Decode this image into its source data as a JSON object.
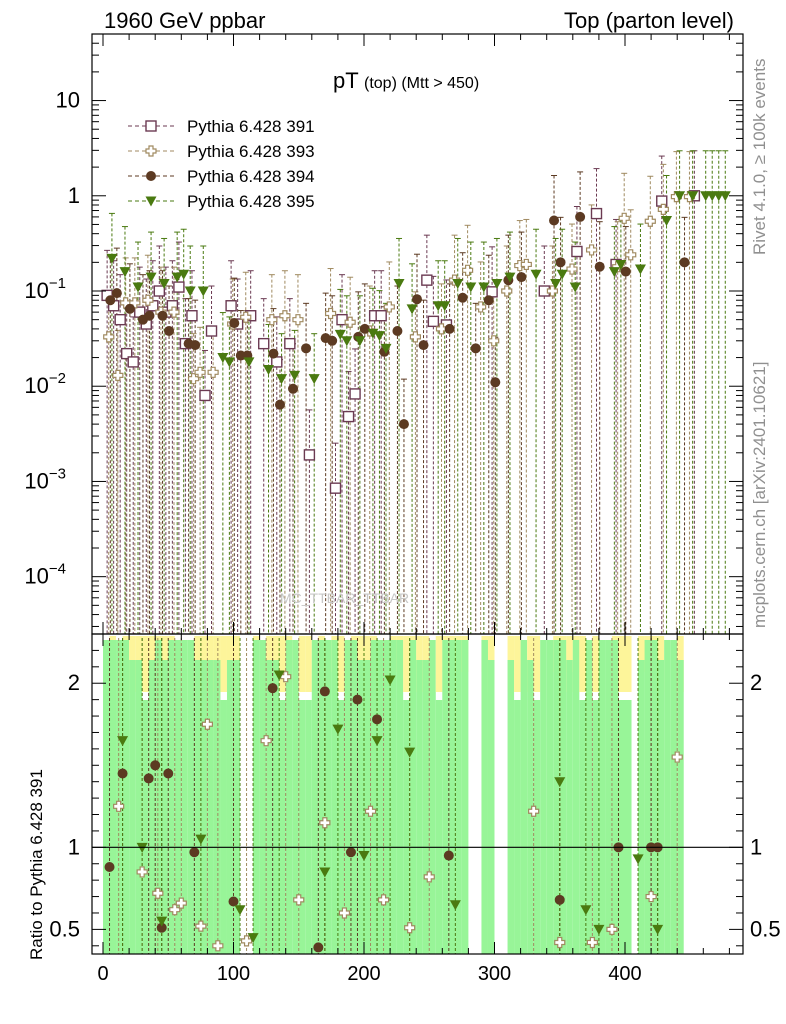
{
  "header": {
    "left": "1960 GeV ppbar",
    "right": "Top (parton level)"
  },
  "side_labels": {
    "rivet": "Rivet 4.1.0, ≥ 100k events",
    "mcplots": "mcplots.cern.ch [arXiv:2401.10621]"
  },
  "watermark": "MC_TTBAR_TTBAR",
  "chart_data": {
    "type": "scatter",
    "title": "pT",
    "title_sub": "(top)  (Mtt > 450)",
    "x_ticks": [
      "0",
      "100",
      "200",
      "300",
      "400"
    ],
    "xlim": [
      0,
      480
    ],
    "main": {
      "yscale": "log",
      "ylim": [
        2.5e-05,
        50
      ],
      "y_ticks": [
        {
          "value": 10,
          "base": "10",
          "exp": ""
        },
        {
          "value": 1,
          "base": "1",
          "exp": ""
        },
        {
          "value": 0.1,
          "base": "10",
          "exp": "−1"
        },
        {
          "value": 0.01,
          "base": "10",
          "exp": "−2"
        },
        {
          "value": 0.001,
          "base": "10",
          "exp": "−3"
        },
        {
          "value": 0.0001,
          "base": "10",
          "exp": "−4"
        }
      ]
    },
    "ratio": {
      "ylabel": "Ratio to Pythia 6.428 391",
      "ylim": [
        0.35,
        2.3
      ],
      "y_ticks": [
        "0.5",
        "1",
        "2"
      ],
      "reference_line": 1
    },
    "legend": [
      "Pythia 6.428 391",
      "Pythia 6.428 393",
      "Pythia 6.428 394",
      "Pythia 6.428 395"
    ],
    "series": [
      {
        "name": "Pythia 6.428 391",
        "marker": "open-square",
        "color": "#6b3a52",
        "points": [
          [
            5,
            0.09
          ],
          [
            10,
            0.07
          ],
          [
            15,
            0.05
          ],
          [
            20,
            0.022
          ],
          [
            25,
            0.018
          ],
          [
            30,
            0.06
          ],
          [
            35,
            0.045
          ],
          [
            40,
            0.07
          ],
          [
            45,
            0.1
          ],
          [
            50,
            0.06
          ],
          [
            55,
            0.07
          ],
          [
            60,
            0.11
          ],
          [
            65,
            0.028
          ],
          [
            70,
            0.055
          ],
          [
            80,
            0.008
          ],
          [
            85,
            0.038
          ],
          [
            100,
            0.07
          ],
          [
            105,
            0.045
          ],
          [
            115,
            0.055
          ],
          [
            125,
            0.028
          ],
          [
            135,
            0.018
          ],
          [
            145,
            0.028
          ],
          [
            160,
            0.0019
          ],
          [
            180,
            0.00085
          ],
          [
            185,
            0.05
          ],
          [
            190,
            0.0048
          ],
          [
            195,
            0.0083
          ],
          [
            210,
            0.055
          ],
          [
            215,
            0.055
          ],
          [
            250,
            0.13
          ],
          [
            255,
            0.048
          ],
          [
            265,
            0.044
          ],
          [
            300,
            0.098
          ],
          [
            340,
            0.1
          ],
          [
            365,
            0.26
          ],
          [
            380,
            0.65
          ],
          [
            395,
            0.19
          ],
          [
            430,
            0.88
          ],
          [
            455,
            1.0
          ]
        ]
      },
      {
        "name": "Pythia 6.428 393",
        "marker": "open-cross",
        "color": "#a08a60",
        "points": [
          [
            5,
            0.033
          ],
          [
            12,
            0.013
          ],
          [
            18,
            0.075
          ],
          [
            25,
            0.075
          ],
          [
            35,
            0.08
          ],
          [
            45,
            0.06
          ],
          [
            55,
            0.06
          ],
          [
            70,
            0.012
          ],
          [
            75,
            0.014
          ],
          [
            85,
            0.014
          ],
          [
            100,
            0.045
          ],
          [
            110,
            0.053
          ],
          [
            130,
            0.05
          ],
          [
            140,
            0.055
          ],
          [
            150,
            0.05
          ],
          [
            175,
            0.058
          ],
          [
            190,
            0.047
          ],
          [
            205,
            0.038
          ],
          [
            220,
            0.068
          ],
          [
            240,
            0.033
          ],
          [
            260,
            0.04
          ],
          [
            270,
            0.13
          ],
          [
            280,
            0.165
          ],
          [
            290,
            0.068
          ],
          [
            300,
            0.03
          ],
          [
            310,
            0.1
          ],
          [
            320,
            0.185
          ],
          [
            325,
            0.19
          ],
          [
            345,
            0.1
          ],
          [
            360,
            0.17
          ],
          [
            375,
            0.27
          ],
          [
            395,
            0.18
          ],
          [
            400,
            0.58
          ],
          [
            405,
            0.24
          ],
          [
            420,
            0.54
          ],
          [
            430,
            0.72
          ],
          [
            440,
            0.98
          ],
          [
            450,
            0.98
          ]
        ]
      },
      {
        "name": "Pythia 6.428 394",
        "marker": "filled-circle",
        "color": "#5c3a22",
        "points": [
          [
            5,
            0.08
          ],
          [
            10,
            0.095
          ],
          [
            20,
            0.065
          ],
          [
            30,
            0.05
          ],
          [
            35,
            0.055
          ],
          [
            45,
            0.055
          ],
          [
            50,
            0.038
          ],
          [
            65,
            0.028
          ],
          [
            70,
            0.027
          ],
          [
            100,
            0.046
          ],
          [
            105,
            0.021
          ],
          [
            110,
            0.021
          ],
          [
            130,
            0.022
          ],
          [
            135,
            0.0064
          ],
          [
            145,
            0.0094
          ],
          [
            155,
            0.025
          ],
          [
            170,
            0.032
          ],
          [
            175,
            0.03
          ],
          [
            195,
            0.033
          ],
          [
            200,
            0.04
          ],
          [
            215,
            0.023
          ],
          [
            225,
            0.038
          ],
          [
            230,
            0.004
          ],
          [
            240,
            0.082
          ],
          [
            245,
            0.027
          ],
          [
            265,
            0.04
          ],
          [
            275,
            0.085
          ],
          [
            285,
            0.025
          ],
          [
            295,
            0.08
          ],
          [
            300,
            0.011
          ],
          [
            310,
            0.13
          ],
          [
            320,
            0.14
          ],
          [
            345,
            0.55
          ],
          [
            350,
            0.2
          ],
          [
            365,
            0.6
          ],
          [
            380,
            0.18
          ],
          [
            400,
            0.16
          ],
          [
            445,
            0.2
          ]
        ]
      },
      {
        "name": "Pythia 6.428 395",
        "marker": "filled-triangle-down",
        "color": "#4a7a10",
        "points": [
          [
            5,
            0.22
          ],
          [
            15,
            0.16
          ],
          [
            25,
            0.11
          ],
          [
            35,
            0.14
          ],
          [
            45,
            0.12
          ],
          [
            55,
            0.14
          ],
          [
            60,
            0.15
          ],
          [
            65,
            0.1
          ],
          [
            75,
            0.1
          ],
          [
            90,
            0.02
          ],
          [
            95,
            0.018
          ],
          [
            110,
            0.018
          ],
          [
            125,
            0.015
          ],
          [
            135,
            0.012
          ],
          [
            145,
            0.013
          ],
          [
            160,
            0.012
          ],
          [
            180,
            0.035
          ],
          [
            185,
            0.03
          ],
          [
            195,
            0.03
          ],
          [
            205,
            0.036
          ],
          [
            210,
            0.034
          ],
          [
            215,
            0.025
          ],
          [
            225,
            0.12
          ],
          [
            235,
            0.065
          ],
          [
            255,
            0.07
          ],
          [
            260,
            0.07
          ],
          [
            270,
            0.12
          ],
          [
            280,
            0.11
          ],
          [
            290,
            0.11
          ],
          [
            300,
            0.12
          ],
          [
            310,
            0.14
          ],
          [
            330,
            0.15
          ],
          [
            345,
            0.12
          ],
          [
            350,
            0.15
          ],
          [
            360,
            0.11
          ],
          [
            390,
            0.16
          ],
          [
            395,
            0.19
          ],
          [
            410,
            0.17
          ],
          [
            430,
            0.55
          ],
          [
            440,
            1.0
          ],
          [
            450,
            1.0
          ],
          [
            460,
            1.0
          ],
          [
            465,
            1.0
          ],
          [
            470,
            1.0
          ],
          [
            475,
            1.0
          ]
        ]
      }
    ],
    "ratio_points": [
      {
        "series": "Pythia 6.428 393",
        "points": [
          [
            12,
            1.25
          ],
          [
            30,
            0.85
          ],
          [
            42,
            0.72
          ],
          [
            55,
            0.62
          ],
          [
            60,
            0.66
          ],
          [
            75,
            0.52
          ],
          [
            80,
            1.75
          ],
          [
            88,
            0.4
          ],
          [
            110,
            0.43
          ],
          [
            125,
            1.65
          ],
          [
            140,
            2.04
          ],
          [
            150,
            0.68
          ],
          [
            170,
            1.15
          ],
          [
            185,
            0.6
          ],
          [
            205,
            1.22
          ],
          [
            215,
            0.68
          ],
          [
            235,
            0.51
          ],
          [
            250,
            0.82
          ],
          [
            330,
            1.22
          ],
          [
            350,
            0.42
          ],
          [
            375,
            0.42
          ],
          [
            390,
            0.5
          ],
          [
            420,
            0.7
          ],
          [
            440,
            1.55
          ]
        ]
      },
      {
        "series": "Pythia 6.428 394",
        "points": [
          [
            5,
            0.88
          ],
          [
            15,
            1.45
          ],
          [
            35,
            1.42
          ],
          [
            40,
            1.5
          ],
          [
            45,
            0.51
          ],
          [
            50,
            1.45
          ],
          [
            70,
            0.97
          ],
          [
            100,
            0.67
          ],
          [
            130,
            1.97
          ],
          [
            165,
            0.39
          ],
          [
            170,
            1.95
          ],
          [
            190,
            0.97
          ],
          [
            195,
            1.9
          ],
          [
            210,
            1.78
          ],
          [
            265,
            0.95
          ],
          [
            350,
            0.68
          ],
          [
            395,
            1.0
          ],
          [
            420,
            1.0
          ],
          [
            425,
            1.0
          ]
        ]
      },
      {
        "series": "Pythia 6.428 395",
        "points": [
          [
            15,
            1.65
          ],
          [
            30,
            1.0
          ],
          [
            45,
            0.55
          ],
          [
            75,
            1.05
          ],
          [
            105,
            0.62
          ],
          [
            115,
            0.45
          ],
          [
            135,
            2.05
          ],
          [
            170,
            0.85
          ],
          [
            180,
            1.72
          ],
          [
            200,
            0.95
          ],
          [
            210,
            1.65
          ],
          [
            220,
            2.02
          ],
          [
            235,
            1.58
          ],
          [
            270,
            0.65
          ],
          [
            350,
            1.4
          ],
          [
            370,
            0.62
          ],
          [
            380,
            0.5
          ],
          [
            410,
            0.93
          ],
          [
            425,
            0.5
          ]
        ]
      }
    ]
  }
}
